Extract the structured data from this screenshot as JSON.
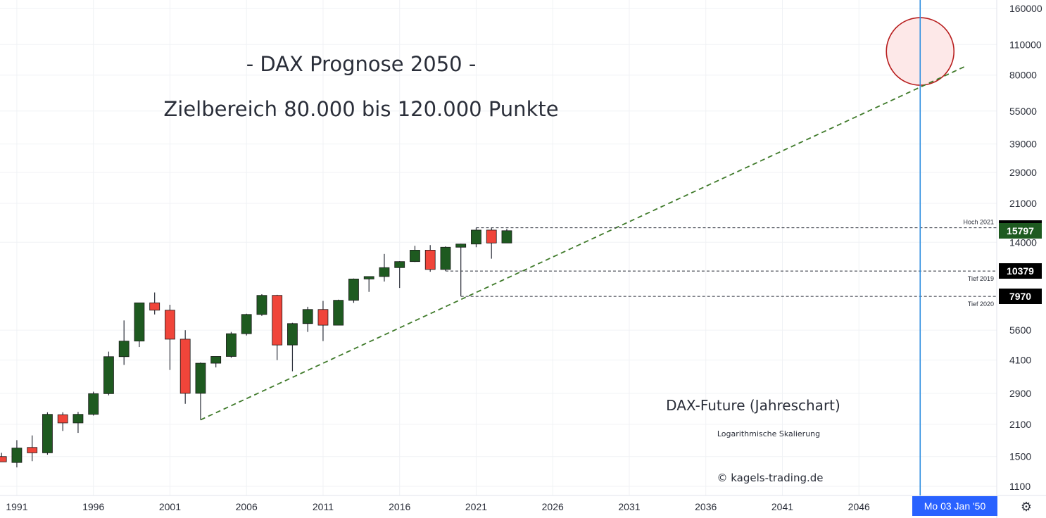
{
  "chart_data": {
    "type": "candlestick",
    "title": "- DAX Prognose 2050 -",
    "subtitle": "Zielbereich 80.000 bis 120.000 Punkte",
    "series_label": "DAX-Future (Jahreschart)",
    "scale_note": "Logarithmische Skalierung",
    "copyright": "© kagels-trading.de",
    "y_scale": "log",
    "ylim": [
      1000,
      175000
    ],
    "xlim": [
      1989.9,
      2055.0
    ],
    "y_ticks": [
      1100,
      1500,
      2100,
      2900,
      4100,
      5600,
      14000,
      21000,
      29000,
      39000,
      55000,
      80000,
      110000,
      160000
    ],
    "x_ticks": [
      "1991",
      "1996",
      "2001",
      "2006",
      "2011",
      "2016",
      "2021",
      "2026",
      "2031",
      "2036",
      "2041",
      "2046"
    ],
    "candles": [
      {
        "year": 1990,
        "open": 1500,
        "high": 1560,
        "low": 1420,
        "close": 1420
      },
      {
        "year": 1991,
        "open": 1410,
        "high": 1780,
        "low": 1340,
        "close": 1640
      },
      {
        "year": 1992,
        "open": 1650,
        "high": 1870,
        "low": 1430,
        "close": 1560
      },
      {
        "year": 1993,
        "open": 1560,
        "high": 2380,
        "low": 1530,
        "close": 2330
      },
      {
        "year": 1994,
        "open": 2320,
        "high": 2380,
        "low": 1960,
        "close": 2130
      },
      {
        "year": 1995,
        "open": 2130,
        "high": 2390,
        "low": 1920,
        "close": 2330
      },
      {
        "year": 1996,
        "open": 2330,
        "high": 2950,
        "low": 2300,
        "close": 2890
      },
      {
        "year": 1997,
        "open": 2890,
        "high": 4480,
        "low": 2840,
        "close": 4250
      },
      {
        "year": 1998,
        "open": 4250,
        "high": 6200,
        "low": 3900,
        "close": 5000
      },
      {
        "year": 1999,
        "open": 5000,
        "high": 7450,
        "low": 4700,
        "close": 7450
      },
      {
        "year": 2000,
        "open": 7450,
        "high": 8300,
        "low": 6600,
        "close": 6900
      },
      {
        "year": 2001,
        "open": 6900,
        "high": 7300,
        "low": 3700,
        "close": 5100
      },
      {
        "year": 2002,
        "open": 5100,
        "high": 5600,
        "low": 2600,
        "close": 2900
      },
      {
        "year": 2003,
        "open": 2900,
        "high": 4000,
        "low": 2200,
        "close": 3970
      },
      {
        "year": 2004,
        "open": 3970,
        "high": 4250,
        "low": 3800,
        "close": 4260
      },
      {
        "year": 2005,
        "open": 4260,
        "high": 5500,
        "low": 4200,
        "close": 5400
      },
      {
        "year": 2006,
        "open": 5400,
        "high": 6650,
        "low": 5300,
        "close": 6600
      },
      {
        "year": 2007,
        "open": 6600,
        "high": 8150,
        "low": 6500,
        "close": 8050
      },
      {
        "year": 2008,
        "open": 8050,
        "high": 8100,
        "low": 4100,
        "close": 4800
      },
      {
        "year": 2009,
        "open": 4800,
        "high": 6050,
        "low": 3650,
        "close": 6000
      },
      {
        "year": 2010,
        "open": 6000,
        "high": 7150,
        "low": 5500,
        "close": 6950
      },
      {
        "year": 2011,
        "open": 6950,
        "high": 7600,
        "low": 5000,
        "close": 5900
      },
      {
        "year": 2012,
        "open": 5900,
        "high": 7700,
        "low": 5900,
        "close": 7650
      },
      {
        "year": 2013,
        "open": 7650,
        "high": 9600,
        "low": 7450,
        "close": 9550
      },
      {
        "year": 2014,
        "open": 9550,
        "high": 9800,
        "low": 8350,
        "close": 9800
      },
      {
        "year": 2015,
        "open": 9800,
        "high": 12400,
        "low": 9300,
        "close": 10750
      },
      {
        "year": 2016,
        "open": 10750,
        "high": 11500,
        "low": 8700,
        "close": 11450
      },
      {
        "year": 2017,
        "open": 11450,
        "high": 13500,
        "low": 11400,
        "close": 12900
      },
      {
        "year": 2018,
        "open": 12900,
        "high": 13600,
        "low": 10300,
        "close": 10550
      },
      {
        "year": 2019,
        "open": 10550,
        "high": 13420,
        "low": 10379,
        "close": 13300
      },
      {
        "year": 2020,
        "open": 13300,
        "high": 13800,
        "low": 7970,
        "close": 13750
      },
      {
        "year": 2021,
        "open": 13750,
        "high": 16295,
        "low": 13300,
        "close": 15900
      },
      {
        "year": 2022,
        "open": 15900,
        "high": 16300,
        "low": 11800,
        "close": 13900
      },
      {
        "year": 2023,
        "open": 13900,
        "high": 16100,
        "low": 13900,
        "close": 15797
      }
    ],
    "trendline": {
      "start": {
        "year": 2003,
        "value": 2200
      },
      "through": {
        "year": 2020,
        "value": 7970
      },
      "end": {
        "year": 2053,
        "value": 88000
      }
    },
    "target_zone": {
      "year": 2050,
      "low": 80000,
      "high": 120000
    },
    "cursor_year": 2050.0,
    "levels": [
      {
        "value": 16295,
        "label": "Hoch 2021",
        "from_year": 2021
      },
      {
        "value": 10379,
        "label": "Tief 2019",
        "from_year": 2019
      },
      {
        "value": 7970,
        "label": "Tief 2020",
        "from_year": 2020
      }
    ],
    "badges": [
      {
        "text": "16295",
        "value": 16295,
        "color": "#000000"
      },
      {
        "text": "15797",
        "value": 15797,
        "color": "#1e5a20"
      },
      {
        "text": "10379",
        "value": 10379,
        "color": "#000000"
      },
      {
        "text": "7970",
        "value": 7970,
        "color": "#000000"
      }
    ],
    "colors": {
      "up": "#1e5a20",
      "down": "#f0453a",
      "wick": "#2a2e39",
      "trend": "#3f7a2a",
      "zone_stroke": "#b71c1c",
      "zone_fill": "#fde8e8",
      "cursor": "#2f8fe0",
      "grid": "#f0f2f5"
    },
    "cursor_date_label": "Mo 03 Jan '50"
  },
  "ui": {
    "settings_icon": "gear-icon"
  }
}
